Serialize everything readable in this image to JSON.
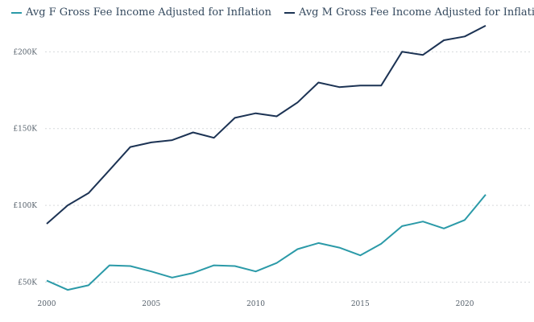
{
  "chart_data": {
    "type": "line",
    "title": "",
    "xlabel": "",
    "ylabel": "",
    "x": [
      2000,
      2001,
      2002,
      2003,
      2004,
      2005,
      2006,
      2007,
      2008,
      2009,
      2010,
      2011,
      2012,
      2013,
      2014,
      2015,
      2016,
      2017,
      2018,
      2019,
      2020,
      2021
    ],
    "series": [
      {
        "name": "Avg F Gross Fee Income Adjusted for Inflation",
        "color": "#2b9aa8",
        "values": [
          51,
          45,
          48,
          61,
          60.5,
          57,
          53,
          56,
          61,
          60.5,
          57,
          62.5,
          71.5,
          75.5,
          72.5,
          67.5,
          75,
          86.5,
          89.5,
          85,
          90.5,
          107
        ]
      },
      {
        "name": "Avg M Gross Fee Income Adjusted for Inflation",
        "color": "#1c3354",
        "values": [
          88,
          100,
          108,
          123,
          138,
          141,
          142.5,
          147.5,
          144,
          157,
          160,
          158,
          167,
          180,
          177,
          178,
          178,
          200,
          198,
          207.5,
          210,
          217
        ]
      }
    ],
    "xlim": [
      2000,
      2021
    ],
    "ylim": [
      44,
      218
    ],
    "y_ticks": [
      50,
      100,
      150,
      200
    ],
    "y_tick_labels": [
      "£50K",
      "£100K",
      "£150K",
      "£200K"
    ],
    "x_ticks": [
      2000,
      2005,
      2010,
      2015,
      2020
    ],
    "x_tick_labels": [
      "2000",
      "2005",
      "2010",
      "2015",
      "2020"
    ],
    "grid": "horizontal-dotted",
    "legend_position": "top-left"
  }
}
